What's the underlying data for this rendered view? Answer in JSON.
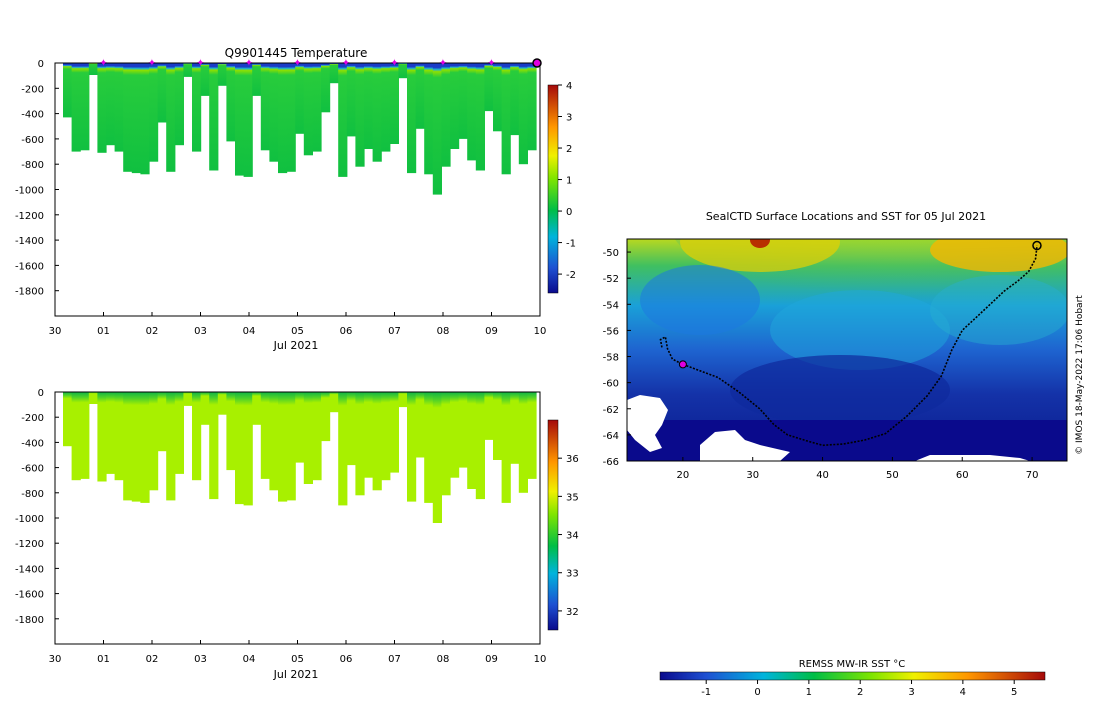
{
  "chart_data": [
    {
      "type": "heatmap",
      "title": "Q9901445  Temperature",
      "xlabel": "Jul 2021",
      "ylabel": "",
      "x_ticks": [
        "30",
        "01",
        "02",
        "03",
        "04",
        "05",
        "06",
        "07",
        "08",
        "09",
        "10"
      ],
      "y_ticks": [
        "0",
        "-200",
        "-400",
        "-600",
        "-800",
        "-1000",
        "-1200",
        "-1400",
        "-1600",
        "-1800"
      ],
      "ylim": [
        -2000,
        0
      ],
      "colorbar": {
        "min": -2.6,
        "max": 4,
        "ticks": [
          "-2",
          "-1",
          "0",
          "1",
          "2",
          "3",
          "4"
        ]
      },
      "profile_depths_m": [
        430,
        700,
        690,
        95,
        710,
        650,
        700,
        860,
        870,
        880,
        780,
        470,
        860,
        650,
        110,
        700,
        260,
        850,
        180,
        620,
        890,
        900,
        260,
        690,
        780,
        870,
        860,
        560,
        730,
        700,
        390,
        160,
        900,
        580,
        820,
        680,
        780,
        700,
        640,
        120,
        870,
        520,
        880,
        1040,
        820,
        680,
        600,
        770,
        850,
        380,
        540,
        880,
        570,
        800,
        690
      ],
      "profile_markers_day": [
        1,
        2,
        3,
        4,
        5,
        6,
        7,
        8,
        9
      ]
    },
    {
      "type": "heatmap",
      "title": "",
      "xlabel": "Jul 2021",
      "ylabel": "",
      "x_ticks": [
        "30",
        "01",
        "02",
        "03",
        "04",
        "05",
        "06",
        "07",
        "08",
        "09",
        "10"
      ],
      "y_ticks": [
        "0",
        "-200",
        "-400",
        "-600",
        "-800",
        "-1000",
        "-1200",
        "-1400",
        "-1600",
        "-1800"
      ],
      "ylim": [
        -2000,
        0
      ],
      "colorbar": {
        "min": 31.5,
        "max": 37,
        "ticks": [
          "32",
          "33",
          "34",
          "35",
          "36"
        ]
      }
    },
    {
      "type": "map",
      "title": "SealCTD Surface Locations and SST for 05 Jul 2021",
      "x_ticks": [
        "20",
        "30",
        "40",
        "50",
        "60",
        "70"
      ],
      "y_ticks": [
        "-50",
        "-52",
        "-54",
        "-56",
        "-58",
        "-60",
        "-62",
        "-64",
        "-66"
      ],
      "xlim": [
        12,
        75
      ],
      "ylim": [
        -66,
        -49
      ],
      "track_lonlat": [
        [
          17,
          -57.3
        ],
        [
          16.8,
          -56.7
        ],
        [
          17.5,
          -56.5
        ],
        [
          17.8,
          -57.4
        ],
        [
          18.5,
          -58.2
        ],
        [
          20,
          -58.6
        ],
        [
          22,
          -59
        ],
        [
          25,
          -59.6
        ],
        [
          28,
          -60.7
        ],
        [
          31,
          -62
        ],
        [
          33,
          -63.2
        ],
        [
          35,
          -64
        ],
        [
          38,
          -64.5
        ],
        [
          40,
          -64.8
        ],
        [
          43,
          -64.7
        ],
        [
          46,
          -64.4
        ],
        [
          49,
          -63.9
        ],
        [
          52,
          -62.6
        ],
        [
          55,
          -61
        ],
        [
          57,
          -59.5
        ],
        [
          58.5,
          -57.5
        ],
        [
          60,
          -56
        ],
        [
          62,
          -55
        ],
        [
          64,
          -54
        ],
        [
          66,
          -53
        ],
        [
          68,
          -52.2
        ],
        [
          69.5,
          -51.5
        ],
        [
          70.5,
          -50.5
        ],
        [
          70.7,
          -49.5
        ]
      ],
      "colorbar_label": "REMSS MW-IR SST °C",
      "colorbar_ticks": [
        "-1",
        "0",
        "1",
        "2",
        "3",
        "4",
        "5"
      ],
      "colorbar_range": [
        -1.9,
        5.6
      ],
      "credit": "© IMOS 18-May-2022 17:06 Hobart"
    }
  ]
}
